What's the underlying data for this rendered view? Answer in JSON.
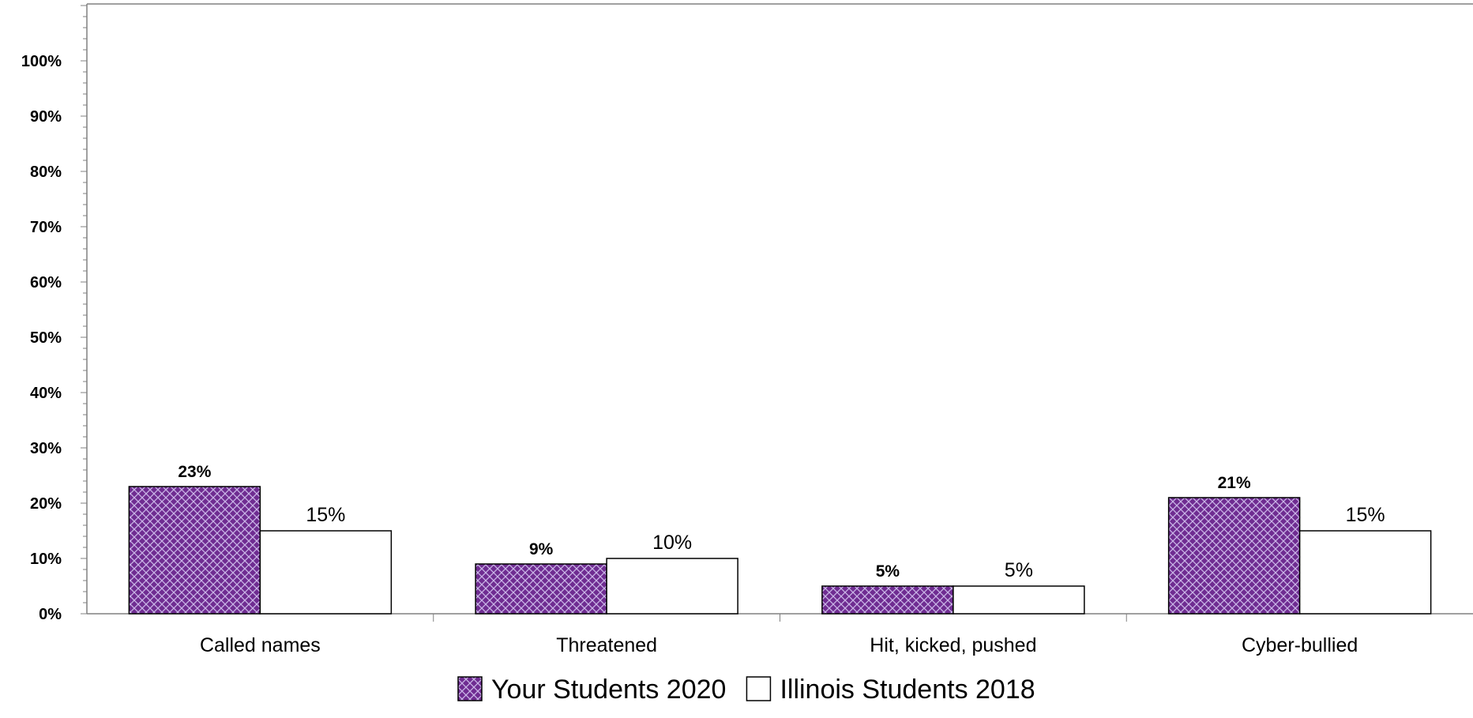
{
  "chart_data": {
    "type": "bar",
    "categories": [
      "Called names",
      "Threatened",
      "Hit, kicked, pushed",
      "Cyber-bullied"
    ],
    "series": [
      {
        "name": "Your Students 2020",
        "values": [
          23,
          9,
          5,
          21
        ],
        "labels": [
          "23%",
          "9%",
          "5%",
          "21%"
        ],
        "fill": "#6f2c91",
        "pattern": "crosshatch"
      },
      {
        "name": "Illinois Students 2018",
        "values": [
          15,
          10,
          5,
          15
        ],
        "labels": [
          "15%",
          "10%",
          "5%",
          "15%"
        ],
        "fill": "#ffffff",
        "pattern": "none"
      }
    ],
    "yticks": [
      "0%",
      "10%",
      "20%",
      "30%",
      "40%",
      "50%",
      "60%",
      "70%",
      "80%",
      "90%",
      "100%"
    ],
    "ylim": [
      0,
      110
    ],
    "grid": false,
    "legend_position": "bottom",
    "title": "",
    "xlabel": "",
    "ylabel": ""
  }
}
